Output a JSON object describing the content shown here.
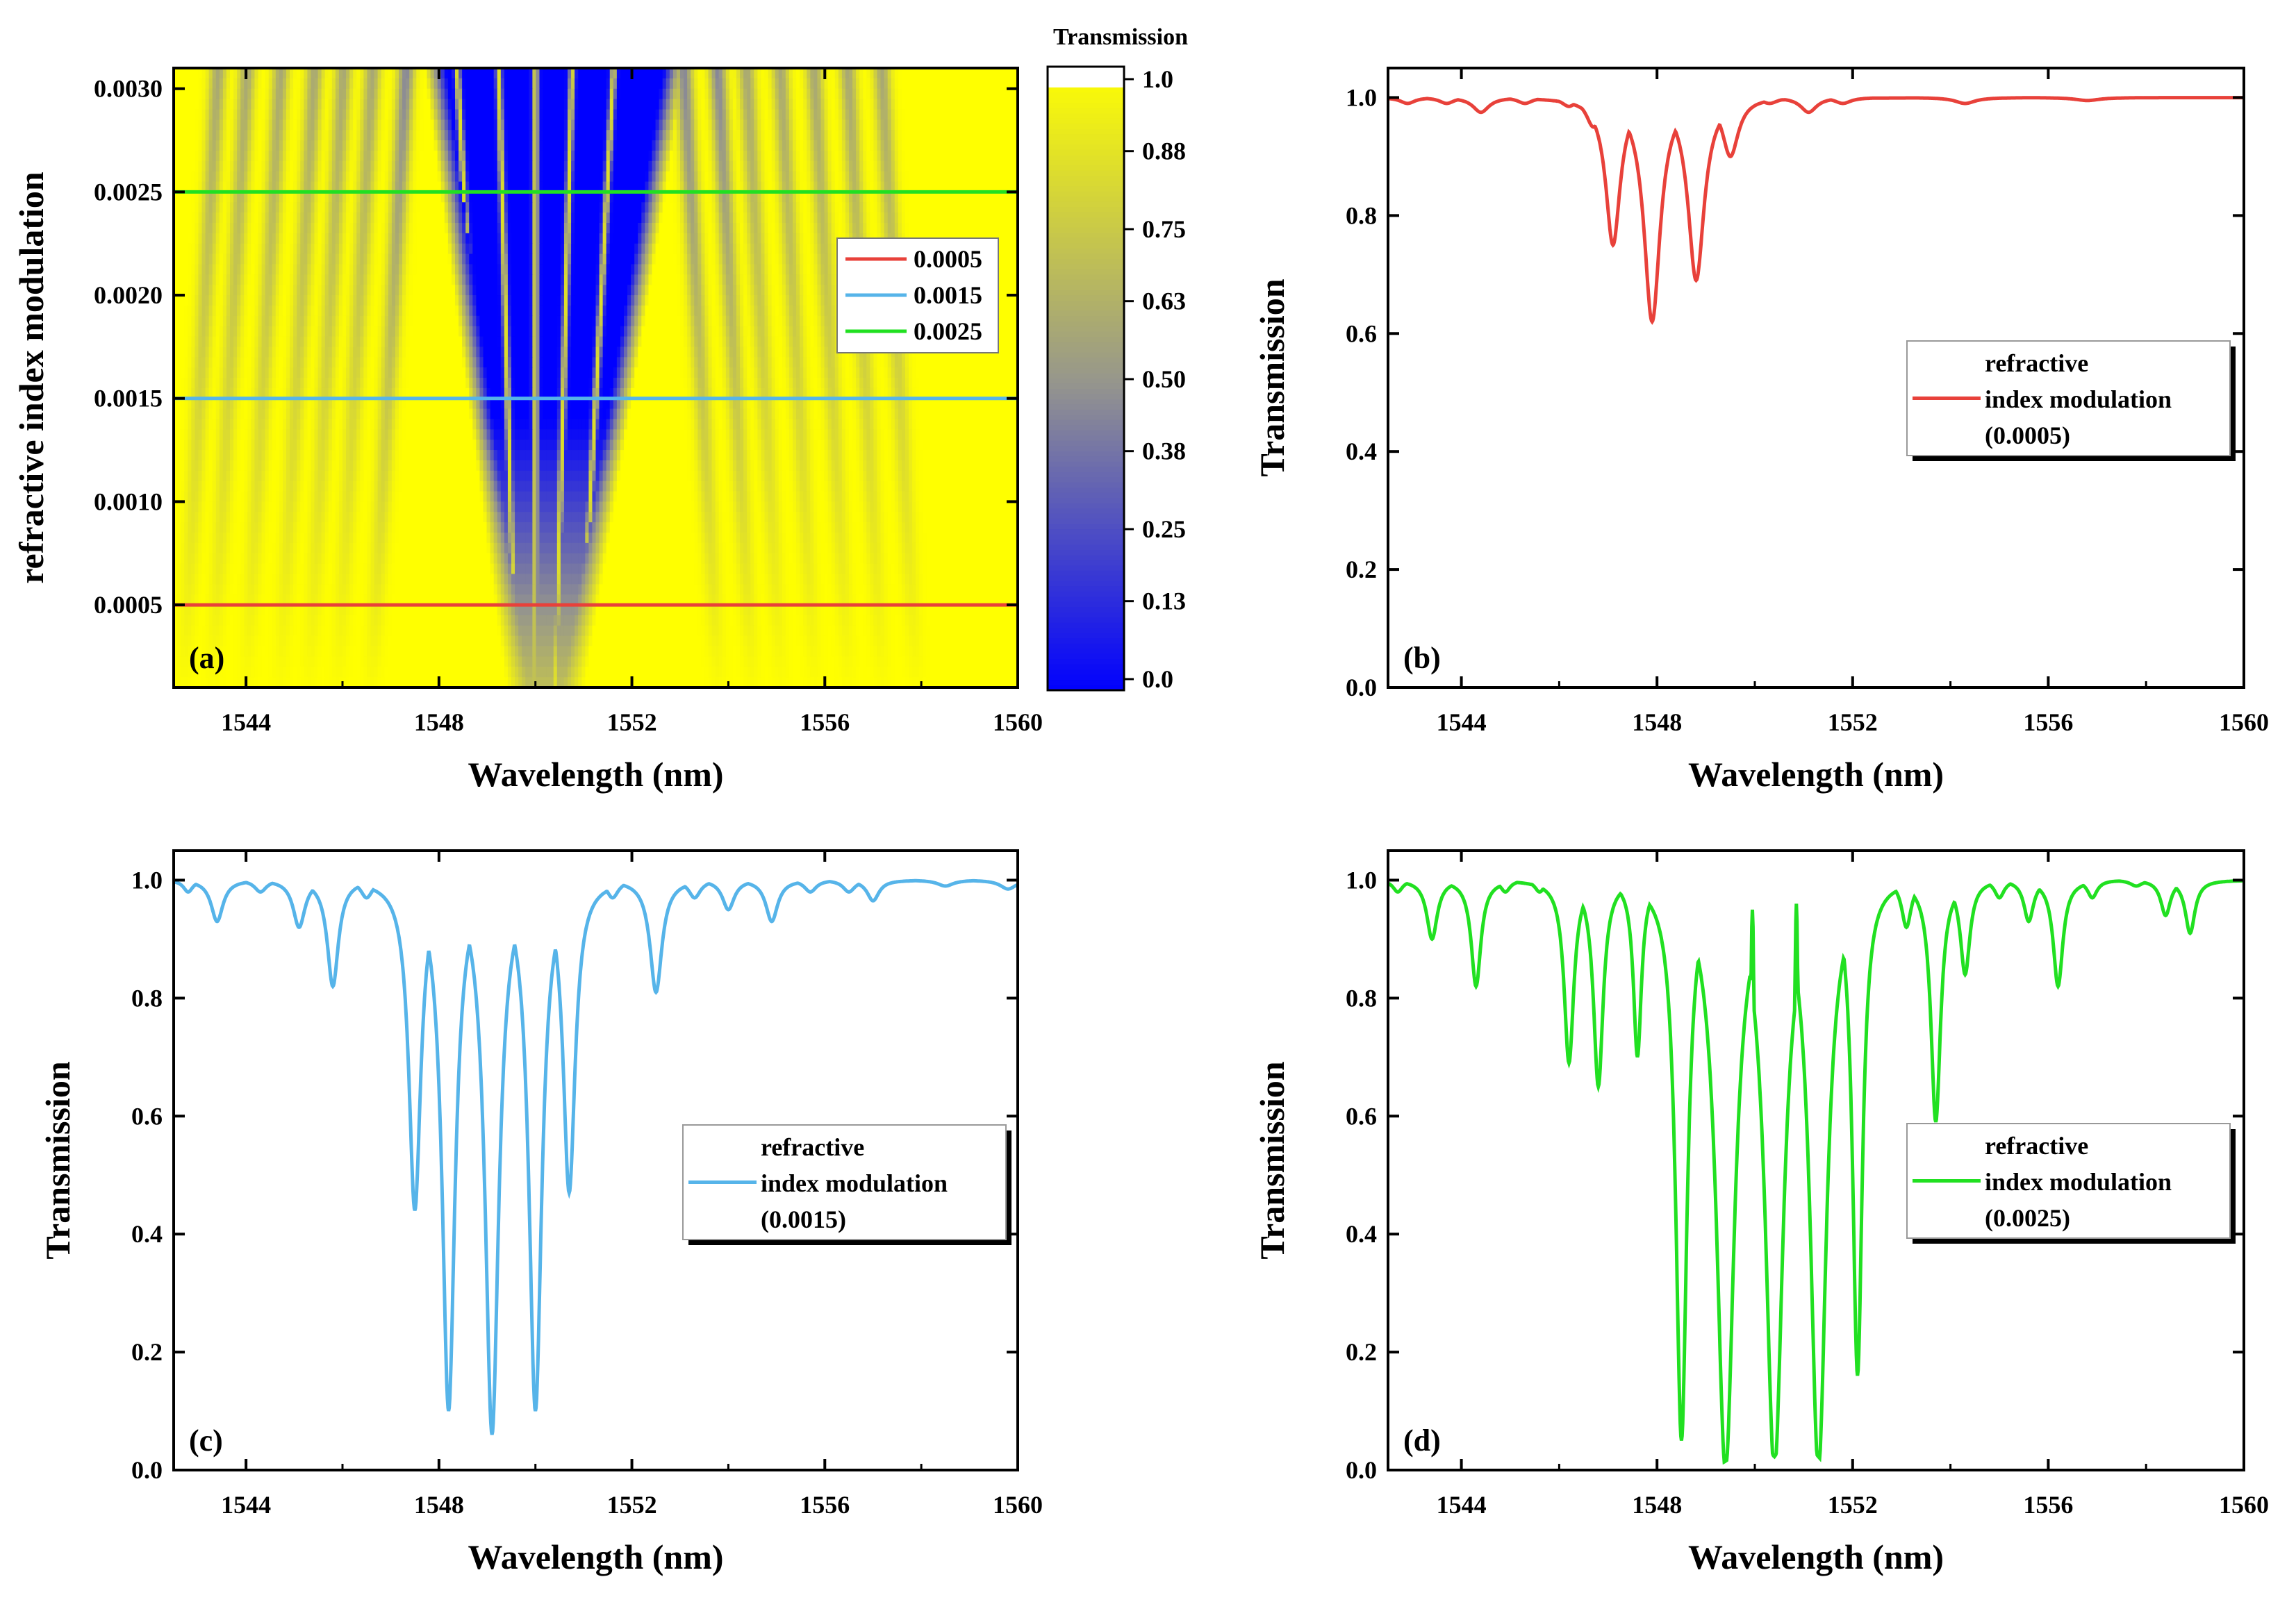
{
  "chart_data": [
    {
      "panel": "(a)",
      "type": "heatmap",
      "xlabel": "Wavelength (nm)",
      "ylabel": "refractive index modulation",
      "xlim": [
        1542.5,
        1560
      ],
      "ylim": [
        0.0001,
        0.0031
      ],
      "xticks": [
        1544,
        1548,
        1552,
        1556,
        1560
      ],
      "xtick_labels": [
        "1544",
        "1548",
        "1552",
        "1556",
        "1560"
      ],
      "yticks": [
        0.0005,
        0.001,
        0.0015,
        0.002,
        0.0025,
        0.003
      ],
      "ytick_labels": [
        "0.0005",
        "0.0010",
        "0.0015",
        "0.0020",
        "0.0025",
        "0.0030"
      ],
      "colorbar": {
        "title": "Transmission",
        "range": [
          0.0,
          1.0
        ],
        "ticks": [
          1.0,
          0.88,
          0.75,
          0.63,
          0.5,
          0.38,
          0.25,
          0.13,
          0.0
        ],
        "tick_labels": [
          "1.0",
          "0.88",
          "0.75",
          "0.63",
          "0.50",
          "0.38",
          "0.25",
          "0.13",
          "0.0"
        ],
        "colors": {
          "low": "#0000ff",
          "mid": "#9a9a8a",
          "high": "#ffff00",
          "top": "#ffffff"
        }
      },
      "reference_lines": [
        {
          "label": "0.0005",
          "y": 0.0005,
          "color": "#e8413a"
        },
        {
          "label": "0.0015",
          "y": 0.0015,
          "color": "#56b4e9"
        },
        {
          "label": "0.0025",
          "y": 0.0025,
          "color": "#21e021"
        }
      ],
      "band_centers": [
        1549.1,
        1549.6,
        1550.0,
        1550.4,
        1550.9
      ],
      "fringe_wavelengths_at_top": [
        1543.4,
        1544.0,
        1544.7,
        1545.4,
        1546.0,
        1546.6,
        1547.3,
        1553.1,
        1553.8,
        1554.4,
        1555.1,
        1555.8,
        1556.5,
        1557.2
      ]
    },
    {
      "panel": "(b)",
      "type": "line",
      "xlabel": "Wavelength (nm)",
      "ylabel": "Transmission",
      "xlim": [
        1542.5,
        1560
      ],
      "ylim": [
        0,
        1.05
      ],
      "xticks": [
        1544,
        1548,
        1552,
        1556,
        1560
      ],
      "xtick_labels": [
        "1544",
        "1548",
        "1552",
        "1556",
        "1560"
      ],
      "yticks": [
        0,
        0.2,
        0.4,
        0.6,
        0.8,
        1.0
      ],
      "ytick_labels": [
        "0.0",
        "0.2",
        "0.4",
        "0.6",
        "0.8",
        "1.0"
      ],
      "series": [
        {
          "name": "refractive index modulation (0.0005)",
          "color": "#e8413a",
          "baseline": 1.0,
          "dips": [
            [
              1542.9,
              0.99,
              0.18
            ],
            [
              1543.7,
              0.99,
              0.18
            ],
            [
              1544.4,
              0.975,
              0.2
            ],
            [
              1545.3,
              0.99,
              0.18
            ],
            [
              1546.2,
              0.985,
              0.18
            ],
            [
              1546.7,
              0.95,
              0.18
            ],
            [
              1547.1,
              0.75,
              0.18
            ],
            [
              1547.9,
              0.62,
              0.2
            ],
            [
              1548.8,
              0.69,
              0.2
            ],
            [
              1549.5,
              0.9,
              0.2
            ],
            [
              1550.3,
              0.99,
              0.2
            ],
            [
              1551.1,
              0.975,
              0.2
            ],
            [
              1551.8,
              0.99,
              0.2
            ],
            [
              1554.3,
              0.99,
              0.25
            ],
            [
              1556.8,
              0.995,
              0.3
            ]
          ]
        }
      ],
      "legend": [
        "refractive",
        "index modulation",
        "(0.0005)"
      ]
    },
    {
      "panel": "(c)",
      "type": "line",
      "xlabel": "Wavelength (nm)",
      "ylabel": "Transmission",
      "xlim": [
        1542.5,
        1560
      ],
      "ylim": [
        0,
        1.05
      ],
      "xticks": [
        1544,
        1548,
        1552,
        1556,
        1560
      ],
      "xtick_labels": [
        "1544",
        "1548",
        "1552",
        "1556",
        "1560"
      ],
      "yticks": [
        0,
        0.2,
        0.4,
        0.6,
        0.8,
        1.0
      ],
      "ytick_labels": [
        "0.0",
        "0.2",
        "0.4",
        "0.6",
        "0.8",
        "1.0"
      ],
      "series": [
        {
          "name": "refractive index modulation (0.0015)",
          "color": "#56b4e9",
          "baseline": 1.0,
          "dips": [
            [
              1542.8,
              0.98,
              0.12
            ],
            [
              1543.4,
              0.93,
              0.15
            ],
            [
              1544.3,
              0.98,
              0.15
            ],
            [
              1545.1,
              0.92,
              0.15
            ],
            [
              1545.8,
              0.82,
              0.14
            ],
            [
              1546.5,
              0.97,
              0.15
            ],
            [
              1547.5,
              0.44,
              0.15
            ],
            [
              1548.2,
              0.1,
              0.16
            ],
            [
              1549.1,
              0.06,
              0.17
            ],
            [
              1550.0,
              0.1,
              0.16
            ],
            [
              1550.7,
              0.47,
              0.15
            ],
            [
              1551.6,
              0.97,
              0.15
            ],
            [
              1552.5,
              0.81,
              0.15
            ],
            [
              1553.3,
              0.97,
              0.15
            ],
            [
              1554.0,
              0.95,
              0.15
            ],
            [
              1554.9,
              0.93,
              0.15
            ],
            [
              1555.7,
              0.98,
              0.15
            ],
            [
              1556.5,
              0.98,
              0.15
            ],
            [
              1557.0,
              0.965,
              0.15
            ],
            [
              1558.5,
              0.99,
              0.2
            ],
            [
              1559.8,
              0.985,
              0.2
            ]
          ]
        }
      ],
      "legend": [
        "refractive",
        "index modulation",
        "(0.0015)"
      ]
    },
    {
      "panel": "(d)",
      "type": "line",
      "xlabel": "Wavelength (nm)",
      "ylabel": "Transmission",
      "xlim": [
        1542.5,
        1560
      ],
      "ylim": [
        0,
        1.05
      ],
      "xticks": [
        1544,
        1548,
        1552,
        1556,
        1560
      ],
      "xtick_labels": [
        "1544",
        "1548",
        "1552",
        "1556",
        "1560"
      ],
      "yticks": [
        0,
        0.2,
        0.4,
        0.6,
        0.8,
        1.0
      ],
      "ytick_labels": [
        "0.0",
        "0.2",
        "0.4",
        "0.6",
        "0.8",
        "1.0"
      ],
      "series": [
        {
          "name": "refractive index modulation (0.0025)",
          "color": "#21e021",
          "baseline": 1.0,
          "dips": [
            [
              1542.7,
              0.98,
              0.12
            ],
            [
              1543.4,
              0.9,
              0.13
            ],
            [
              1544.3,
              0.82,
              0.12
            ],
            [
              1544.9,
              0.98,
              0.12
            ],
            [
              1545.6,
              0.98,
              0.12
            ],
            [
              1546.2,
              0.69,
              0.12
            ],
            [
              1546.8,
              0.65,
              0.12
            ],
            [
              1547.6,
              0.7,
              0.1
            ],
            [
              1548.5,
              0.05,
              0.14
            ],
            [
              1549.4,
              0.0,
              0.22
            ],
            [
              1550.4,
              0.0,
              0.22
            ],
            [
              1551.3,
              0.0,
              0.2
            ],
            [
              1552.1,
              0.16,
              0.12
            ],
            [
              1552.7,
              0.97,
              0.1
            ],
            [
              1553.1,
              0.92,
              0.12
            ],
            [
              1553.7,
              0.59,
              0.12
            ],
            [
              1554.3,
              0.84,
              0.12
            ],
            [
              1555.0,
              0.97,
              0.12
            ],
            [
              1555.6,
              0.93,
              0.12
            ],
            [
              1556.2,
              0.82,
              0.12
            ],
            [
              1556.9,
              0.97,
              0.12
            ],
            [
              1557.8,
              0.99,
              0.15
            ],
            [
              1558.4,
              0.94,
              0.12
            ],
            [
              1558.9,
              0.91,
              0.12
            ]
          ],
          "spikes": [
            [
              1549.95,
              0.95,
              0.07
            ],
            [
              1550.85,
              0.96,
              0.07
            ]
          ]
        }
      ],
      "legend": [
        "refractive",
        "index modulation",
        "(0.0025)"
      ]
    }
  ]
}
